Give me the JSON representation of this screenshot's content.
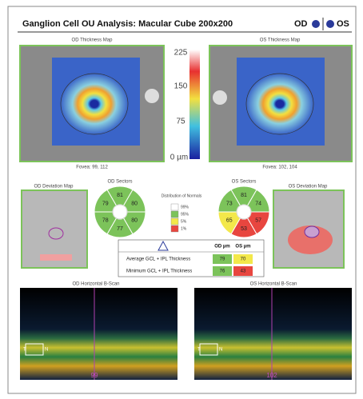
{
  "header": {
    "title": "Ganglion Cell OU Analysis: Macular Cube 200x200",
    "od": "OD",
    "os": "OS"
  },
  "od_thickness_map": {
    "title": "OD Thickness Map",
    "fovea": "Fovea: 99, 112"
  },
  "os_thickness_map": {
    "title": "OS Thickness Map",
    "fovea": "Fovea: 102, 104"
  },
  "colorbar": {
    "ticks": [
      "225",
      "150",
      "75",
      "0 µm"
    ]
  },
  "od_deviation_map": {
    "title": "OD Deviation Map"
  },
  "os_deviation_map": {
    "title": "OS Deviation Map"
  },
  "od_sectors": {
    "title": "OD Sectors",
    "sectors": [
      {
        "value": "81",
        "color": "#7cc35a"
      },
      {
        "value": "80",
        "color": "#7cc35a"
      },
      {
        "value": "80",
        "color": "#7cc35a"
      },
      {
        "value": "77",
        "color": "#7cc35a"
      },
      {
        "value": "78",
        "color": "#7cc35a"
      },
      {
        "value": "79",
        "color": "#7cc35a"
      }
    ]
  },
  "os_sectors": {
    "title": "OS Sectors",
    "sectors": [
      {
        "value": "81",
        "color": "#7cc35a"
      },
      {
        "value": "74",
        "color": "#7cc35a"
      },
      {
        "value": "57",
        "color": "#e8463f"
      },
      {
        "value": "53",
        "color": "#e8463f"
      },
      {
        "value": "65",
        "color": "#f3e84a"
      },
      {
        "value": "73",
        "color": "#7cc35a"
      }
    ]
  },
  "legend": {
    "title": "Distribution of Normals",
    "items": [
      {
        "label": "99%",
        "color": "#ffffff"
      },
      {
        "label": "95%",
        "color": "#7cc35a"
      },
      {
        "label": "5%",
        "color": "#f3e84a"
      },
      {
        "label": "1%",
        "color": "#e8463f"
      }
    ]
  },
  "table": {
    "columns": [
      "OD µm",
      "OS µm"
    ],
    "rows": [
      [
        "Average GCL + IPL Thickness",
        "79",
        "70"
      ],
      [
        "Minimum GCL + IPL Thickness",
        "76",
        "43"
      ]
    ]
  },
  "od_bscan": {
    "title": "OD Horizontal B-Scan",
    "position": "99",
    "t": "T",
    "n": "N"
  },
  "os_bscan": {
    "title": "OS Horizontal B-Scan",
    "position": "102",
    "t": "T",
    "n": "N"
  }
}
